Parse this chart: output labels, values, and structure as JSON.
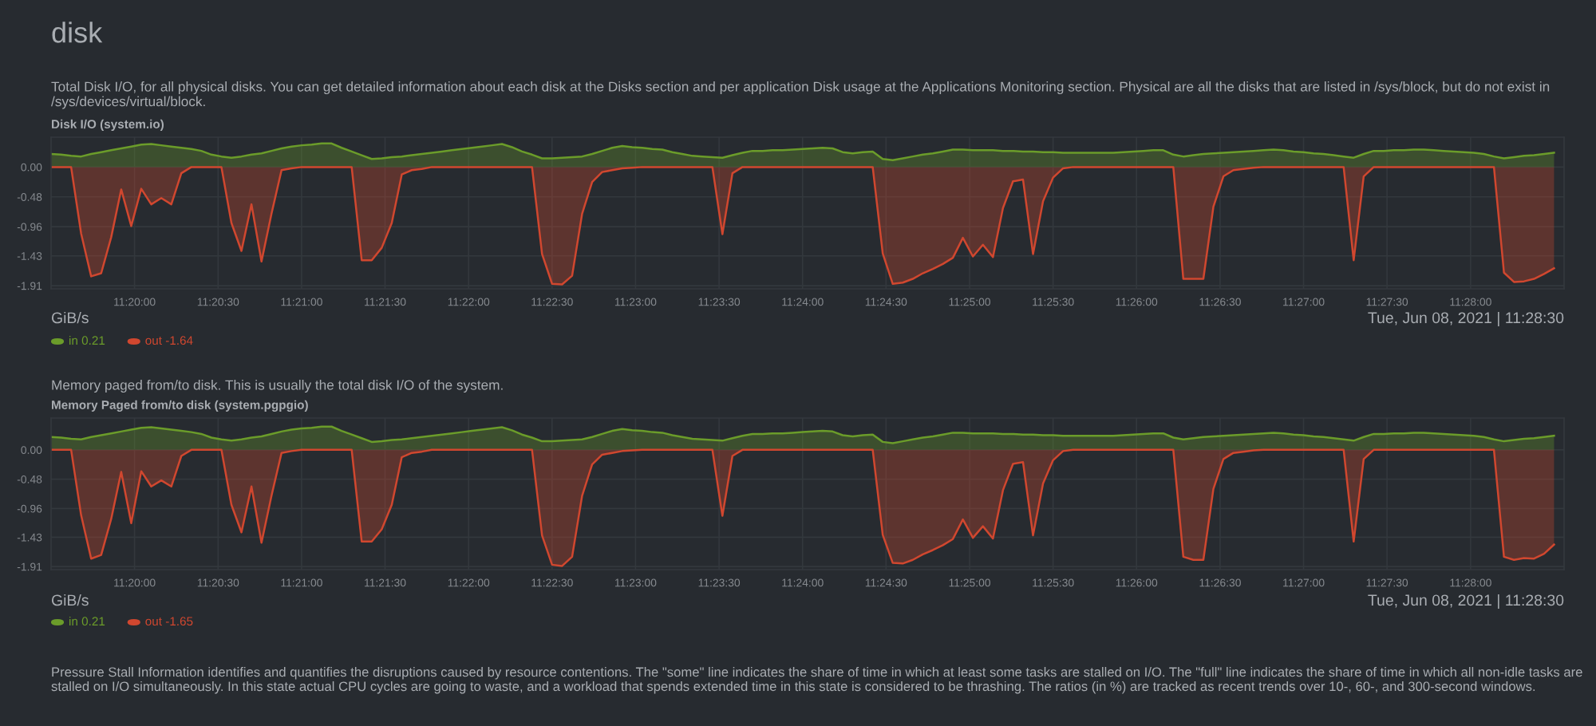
{
  "chart_data": [
    {
      "type": "area",
      "title": "Disk I/O (system.io)",
      "subtitle": "Total Disk I/O, for all physical disks. You can get detailed information about each disk at the Disks section and per application Disk usage at the Applications Monitoring section. Physical are all the disks that are listed in /sys/block, but do not exist in /sys/devices/virtual/block.",
      "annotations": [
        "disk",
        "GiB/s",
        "Tue, Jun 08, 2021 | 11:28:30"
      ],
      "x": [
        11.325,
        11.326,
        11.327,
        11.328,
        11.329,
        11.33,
        11.331,
        11.332,
        11.333,
        11.334,
        11.335,
        11.336,
        11.337,
        11.338,
        11.339,
        11.34,
        11.341,
        11.342,
        11.343,
        11.344,
        11.345,
        11.346,
        11.347,
        11.348,
        11.349,
        11.35,
        11.351,
        11.352,
        11.353,
        11.354,
        11.355,
        11.356,
        11.357,
        11.358,
        11.359,
        11.36,
        11.361,
        11.362,
        11.363,
        11.364,
        11.365,
        11.366,
        11.367,
        11.368,
        11.369,
        11.37,
        11.371,
        11.372,
        11.373,
        11.374,
        11.375,
        11.376,
        11.377,
        11.378,
        11.379,
        11.38,
        11.381,
        11.382,
        11.383,
        11.384,
        11.385,
        11.386,
        11.387,
        11.388,
        11.389,
        11.39,
        11.391,
        11.392,
        11.393,
        11.394,
        11.395,
        11.396,
        11.397,
        11.398,
        11.399,
        11.4,
        11.401,
        11.402,
        11.403,
        11.404,
        11.405,
        11.406,
        11.407,
        11.408,
        11.409,
        11.41,
        11.411,
        11.412,
        11.413,
        11.414,
        11.415,
        11.416,
        11.417,
        11.418,
        11.419,
        11.42,
        11.421,
        11.422,
        11.423,
        11.424,
        11.425,
        11.426,
        11.427,
        11.428,
        11.429,
        11.43,
        11.431,
        11.432,
        11.433,
        11.434,
        11.435,
        11.436,
        11.437,
        11.438,
        11.439,
        11.44,
        11.441,
        11.442,
        11.443,
        11.444,
        11.445,
        11.446,
        11.447,
        11.448,
        11.449,
        11.45,
        11.451,
        11.452,
        11.453,
        11.454,
        11.455,
        11.456,
        11.457,
        11.458,
        11.459,
        11.46,
        11.461,
        11.462,
        11.463,
        11.464,
        11.465,
        11.466,
        11.467,
        11.468,
        11.469,
        11.47,
        11.471,
        11.472,
        11.473,
        11.474,
        11.475
      ],
      "xlim": [
        11.325,
        11.476
      ],
      "xticks": [
        {
          "value": 11.33333,
          "label": "11:20:00"
        },
        {
          "value": 11.34167,
          "label": "11:20:30"
        },
        {
          "value": 11.35,
          "label": "11:21:00"
        },
        {
          "value": 11.35833,
          "label": "11:21:30"
        },
        {
          "value": 11.36667,
          "label": "11:22:00"
        },
        {
          "value": 11.375,
          "label": "11:22:30"
        },
        {
          "value": 11.38333,
          "label": "11:23:00"
        },
        {
          "value": 11.39167,
          "label": "11:23:30"
        },
        {
          "value": 11.4,
          "label": "11:24:00"
        },
        {
          "value": 11.40833,
          "label": "11:24:30"
        },
        {
          "value": 11.41667,
          "label": "11:25:00"
        },
        {
          "value": 11.425,
          "label": "11:25:30"
        },
        {
          "value": 11.43333,
          "label": "11:26:00"
        },
        {
          "value": 11.44167,
          "label": "11:26:30"
        },
        {
          "value": 11.45,
          "label": "11:27:00"
        },
        {
          "value": 11.45833,
          "label": "11:27:30"
        },
        {
          "value": 11.46667,
          "label": "11:28:00"
        }
      ],
      "ylim": [
        -1.96,
        0.48
      ],
      "yticks": [
        {
          "value": 0,
          "label": "0.00"
        },
        -0.48,
        -0.96,
        -1.43,
        -1.91
      ],
      "grid": true,
      "legend": "bottom left",
      "series": [
        {
          "name": "in 0.21",
          "color": "#6b9c2a",
          "values": [
            0.21,
            0.2,
            0.18,
            0.17,
            0.21,
            0.24,
            0.27,
            0.3,
            0.33,
            0.36,
            0.37,
            0.35,
            0.33,
            0.31,
            0.29,
            0.26,
            0.2,
            0.17,
            0.15,
            0.17,
            0.2,
            0.22,
            0.26,
            0.3,
            0.33,
            0.35,
            0.36,
            0.38,
            0.38,
            0.31,
            0.25,
            0.19,
            0.13,
            0.14,
            0.16,
            0.17,
            0.19,
            0.21,
            0.23,
            0.25,
            0.27,
            0.29,
            0.31,
            0.33,
            0.35,
            0.37,
            0.32,
            0.25,
            0.2,
            0.14,
            0.14,
            0.15,
            0.16,
            0.17,
            0.21,
            0.26,
            0.31,
            0.34,
            0.32,
            0.31,
            0.29,
            0.28,
            0.24,
            0.21,
            0.18,
            0.17,
            0.16,
            0.15,
            0.19,
            0.23,
            0.26,
            0.26,
            0.27,
            0.27,
            0.28,
            0.29,
            0.3,
            0.31,
            0.3,
            0.24,
            0.22,
            0.24,
            0.25,
            0.13,
            0.11,
            0.14,
            0.17,
            0.2,
            0.22,
            0.25,
            0.28,
            0.28,
            0.27,
            0.27,
            0.27,
            0.26,
            0.26,
            0.25,
            0.25,
            0.24,
            0.24,
            0.23,
            0.23,
            0.23,
            0.23,
            0.23,
            0.23,
            0.24,
            0.25,
            0.26,
            0.27,
            0.27,
            0.2,
            0.17,
            0.19,
            0.21,
            0.22,
            0.23,
            0.24,
            0.25,
            0.26,
            0.27,
            0.28,
            0.27,
            0.25,
            0.24,
            0.22,
            0.21,
            0.19,
            0.17,
            0.15,
            0.21,
            0.26,
            0.26,
            0.27,
            0.27,
            0.28,
            0.28,
            0.27,
            0.26,
            0.25,
            0.24,
            0.23,
            0.21,
            0.17,
            0.14,
            0.16,
            0.18,
            0.19,
            0.21,
            0.23
          ]
        },
        {
          "name": "out -1.64",
          "color": "#d0472f",
          "values": [
            0,
            0,
            0,
            -1.07,
            -1.76,
            -1.71,
            -1.13,
            -0.36,
            -0.95,
            -0.35,
            -0.6,
            -0.5,
            -0.6,
            -0.1,
            0,
            0,
            0,
            0,
            -0.9,
            -1.35,
            -0.6,
            -1.52,
            -0.75,
            -0.05,
            -0.02,
            0,
            0,
            0,
            0,
            0,
            0,
            -1.5,
            -1.5,
            -1.3,
            -0.9,
            -0.12,
            -0.05,
            -0.03,
            0,
            0,
            0,
            0,
            0,
            0,
            0,
            0,
            0,
            0,
            0,
            -1.4,
            -1.88,
            -1.89,
            -1.75,
            -0.75,
            -0.24,
            -0.08,
            -0.05,
            -0.02,
            -0.01,
            0,
            0,
            0,
            0,
            0,
            0,
            0,
            0,
            -1.08,
            -0.1,
            0,
            0,
            0,
            0,
            0,
            0,
            0,
            0,
            0,
            0,
            0,
            0,
            0,
            0,
            -1.39,
            -1.88,
            -1.86,
            -1.8,
            -1.71,
            -1.64,
            -1.56,
            -1.46,
            -1.14,
            -1.44,
            -1.25,
            -1.45,
            -0.66,
            -0.23,
            -0.2,
            -1.4,
            -0.55,
            -0.17,
            -0.02,
            0,
            0,
            0,
            0,
            0,
            0,
            0,
            0,
            0,
            0,
            0,
            -1.8,
            -1.8,
            -1.8,
            -0.64,
            -0.15,
            -0.05,
            -0.03,
            -0.01,
            0,
            0,
            0,
            0,
            0,
            0,
            0,
            0,
            0,
            -1.5,
            -0.15,
            0,
            0,
            0,
            0,
            0,
            0,
            0,
            0,
            0,
            0,
            0,
            0,
            0,
            -1.7,
            -1.85,
            -1.84,
            -1.8,
            -1.72,
            -1.63
          ]
        }
      ]
    },
    {
      "type": "area",
      "title": "Memory Paged from/to disk (system.pgpgio)",
      "subtitle": "Memory paged from/to disk. This is usually the total disk I/O of the system.",
      "annotations": [
        "GiB/s",
        "Tue, Jun 08, 2021 | 11:28:30",
        "Pressure Stall Information identifies and quantifies the disruptions caused by resource contentions. The \"some\" line indicates the share of time in which at least some tasks are stalled on I/O. The \"full\" line indicates the share of time in which all non-idle tasks are stalled on I/O simultaneously. In this state actual CPU cycles are going to waste, and a workload that spends extended time in this state is considered to be thrashing. The ratios (in %) are tracked as recent trends over 10-, 60-, and 300-second windows."
      ],
      "x": [
        11.325,
        11.326,
        11.327,
        11.328,
        11.329,
        11.33,
        11.331,
        11.332,
        11.333,
        11.334,
        11.335,
        11.336,
        11.337,
        11.338,
        11.339,
        11.34,
        11.341,
        11.342,
        11.343,
        11.344,
        11.345,
        11.346,
        11.347,
        11.348,
        11.349,
        11.35,
        11.351,
        11.352,
        11.353,
        11.354,
        11.355,
        11.356,
        11.357,
        11.358,
        11.359,
        11.36,
        11.361,
        11.362,
        11.363,
        11.364,
        11.365,
        11.366,
        11.367,
        11.368,
        11.369,
        11.37,
        11.371,
        11.372,
        11.373,
        11.374,
        11.375,
        11.376,
        11.377,
        11.378,
        11.379,
        11.38,
        11.381,
        11.382,
        11.383,
        11.384,
        11.385,
        11.386,
        11.387,
        11.388,
        11.389,
        11.39,
        11.391,
        11.392,
        11.393,
        11.394,
        11.395,
        11.396,
        11.397,
        11.398,
        11.399,
        11.4,
        11.401,
        11.402,
        11.403,
        11.404,
        11.405,
        11.406,
        11.407,
        11.408,
        11.409,
        11.41,
        11.411,
        11.412,
        11.413,
        11.414,
        11.415,
        11.416,
        11.417,
        11.418,
        11.419,
        11.42,
        11.421,
        11.422,
        11.423,
        11.424,
        11.425,
        11.426,
        11.427,
        11.428,
        11.429,
        11.43,
        11.431,
        11.432,
        11.433,
        11.434,
        11.435,
        11.436,
        11.437,
        11.438,
        11.439,
        11.44,
        11.441,
        11.442,
        11.443,
        11.444,
        11.445,
        11.446,
        11.447,
        11.448,
        11.449,
        11.45,
        11.451,
        11.452,
        11.453,
        11.454,
        11.455,
        11.456,
        11.457,
        11.458,
        11.459,
        11.46,
        11.461,
        11.462,
        11.463,
        11.464,
        11.465,
        11.466,
        11.467,
        11.468,
        11.469,
        11.47,
        11.471,
        11.472,
        11.473,
        11.474,
        11.475
      ],
      "xlim": [
        11.325,
        11.476
      ],
      "xticks": [
        {
          "value": 11.33333,
          "label": "11:20:00"
        },
        {
          "value": 11.34167,
          "label": "11:20:30"
        },
        {
          "value": 11.35,
          "label": "11:21:00"
        },
        {
          "value": 11.35833,
          "label": "11:21:30"
        },
        {
          "value": 11.36667,
          "label": "11:22:00"
        },
        {
          "value": 11.375,
          "label": "11:22:30"
        },
        {
          "value": 11.38333,
          "label": "11:23:00"
        },
        {
          "value": 11.39167,
          "label": "11:23:30"
        },
        {
          "value": 11.4,
          "label": "11:24:00"
        },
        {
          "value": 11.40833,
          "label": "11:24:30"
        },
        {
          "value": 11.41667,
          "label": "11:25:00"
        },
        {
          "value": 11.425,
          "label": "11:25:30"
        },
        {
          "value": 11.43333,
          "label": "11:26:00"
        },
        {
          "value": 11.44167,
          "label": "11:26:30"
        },
        {
          "value": 11.45,
          "label": "11:27:00"
        },
        {
          "value": 11.45833,
          "label": "11:27:30"
        },
        {
          "value": 11.46667,
          "label": "11:28:00"
        }
      ],
      "ylim": [
        -1.96,
        0.52
      ],
      "yticks": [
        {
          "value": 0,
          "label": "0.00"
        },
        -0.48,
        -0.96,
        -1.43,
        -1.91
      ],
      "grid": true,
      "legend": "bottom left",
      "series": [
        {
          "name": "in 0.21",
          "color": "#6b9c2a",
          "values": [
            0.21,
            0.2,
            0.18,
            0.17,
            0.21,
            0.24,
            0.27,
            0.3,
            0.33,
            0.36,
            0.37,
            0.35,
            0.33,
            0.31,
            0.29,
            0.26,
            0.2,
            0.17,
            0.15,
            0.17,
            0.2,
            0.22,
            0.26,
            0.3,
            0.33,
            0.35,
            0.36,
            0.38,
            0.38,
            0.31,
            0.25,
            0.19,
            0.13,
            0.14,
            0.16,
            0.17,
            0.19,
            0.21,
            0.23,
            0.25,
            0.27,
            0.29,
            0.31,
            0.33,
            0.35,
            0.37,
            0.32,
            0.25,
            0.2,
            0.14,
            0.14,
            0.15,
            0.16,
            0.17,
            0.21,
            0.26,
            0.31,
            0.34,
            0.32,
            0.31,
            0.29,
            0.28,
            0.24,
            0.21,
            0.18,
            0.17,
            0.16,
            0.15,
            0.19,
            0.23,
            0.26,
            0.26,
            0.27,
            0.27,
            0.28,
            0.29,
            0.3,
            0.31,
            0.3,
            0.24,
            0.22,
            0.24,
            0.25,
            0.13,
            0.11,
            0.14,
            0.17,
            0.2,
            0.22,
            0.25,
            0.28,
            0.28,
            0.27,
            0.27,
            0.27,
            0.26,
            0.26,
            0.25,
            0.25,
            0.24,
            0.24,
            0.23,
            0.23,
            0.23,
            0.23,
            0.23,
            0.23,
            0.24,
            0.25,
            0.26,
            0.27,
            0.27,
            0.2,
            0.17,
            0.19,
            0.21,
            0.22,
            0.23,
            0.24,
            0.25,
            0.26,
            0.27,
            0.28,
            0.27,
            0.25,
            0.24,
            0.22,
            0.21,
            0.19,
            0.17,
            0.15,
            0.21,
            0.26,
            0.26,
            0.27,
            0.27,
            0.28,
            0.28,
            0.27,
            0.26,
            0.25,
            0.24,
            0.23,
            0.21,
            0.17,
            0.14,
            0.16,
            0.18,
            0.19,
            0.21,
            0.23
          ]
        },
        {
          "name": "out -1.65",
          "color": "#d0472f",
          "values": [
            0,
            0,
            0,
            -1.07,
            -1.78,
            -1.72,
            -1.13,
            -0.36,
            -1.2,
            -0.35,
            -0.6,
            -0.5,
            -0.6,
            -0.1,
            0,
            0,
            0,
            0,
            -0.9,
            -1.35,
            -0.6,
            -1.52,
            -0.75,
            -0.05,
            -0.02,
            0,
            0,
            0,
            0,
            0,
            0,
            -1.5,
            -1.5,
            -1.3,
            -0.9,
            -0.12,
            -0.05,
            -0.03,
            0,
            0,
            0,
            0,
            0,
            0,
            0,
            0,
            0,
            0,
            0,
            -1.4,
            -1.88,
            -1.9,
            -1.75,
            -0.75,
            -0.24,
            -0.08,
            -0.05,
            -0.02,
            -0.01,
            0,
            0,
            0,
            0,
            0,
            0,
            0,
            0,
            -1.08,
            -0.1,
            0,
            0,
            0,
            0,
            0,
            0,
            0,
            0,
            0,
            0,
            0,
            0,
            0,
            0,
            -1.39,
            -1.85,
            -1.86,
            -1.8,
            -1.71,
            -1.64,
            -1.56,
            -1.46,
            -1.14,
            -1.44,
            -1.25,
            -1.45,
            -0.66,
            -0.23,
            -0.2,
            -1.4,
            -0.55,
            -0.17,
            -0.02,
            0,
            0,
            0,
            0,
            0,
            0,
            0,
            0,
            0,
            0,
            0,
            -1.75,
            -1.8,
            -1.8,
            -0.64,
            -0.15,
            -0.05,
            -0.03,
            -0.01,
            0,
            0,
            0,
            0,
            0,
            0,
            0,
            0,
            0,
            -1.5,
            -0.15,
            0,
            0,
            0,
            0,
            0,
            0,
            0,
            0,
            0,
            0,
            0,
            0,
            0,
            -1.75,
            -1.8,
            -1.77,
            -1.78,
            -1.7,
            -1.55
          ]
        }
      ]
    }
  ]
}
